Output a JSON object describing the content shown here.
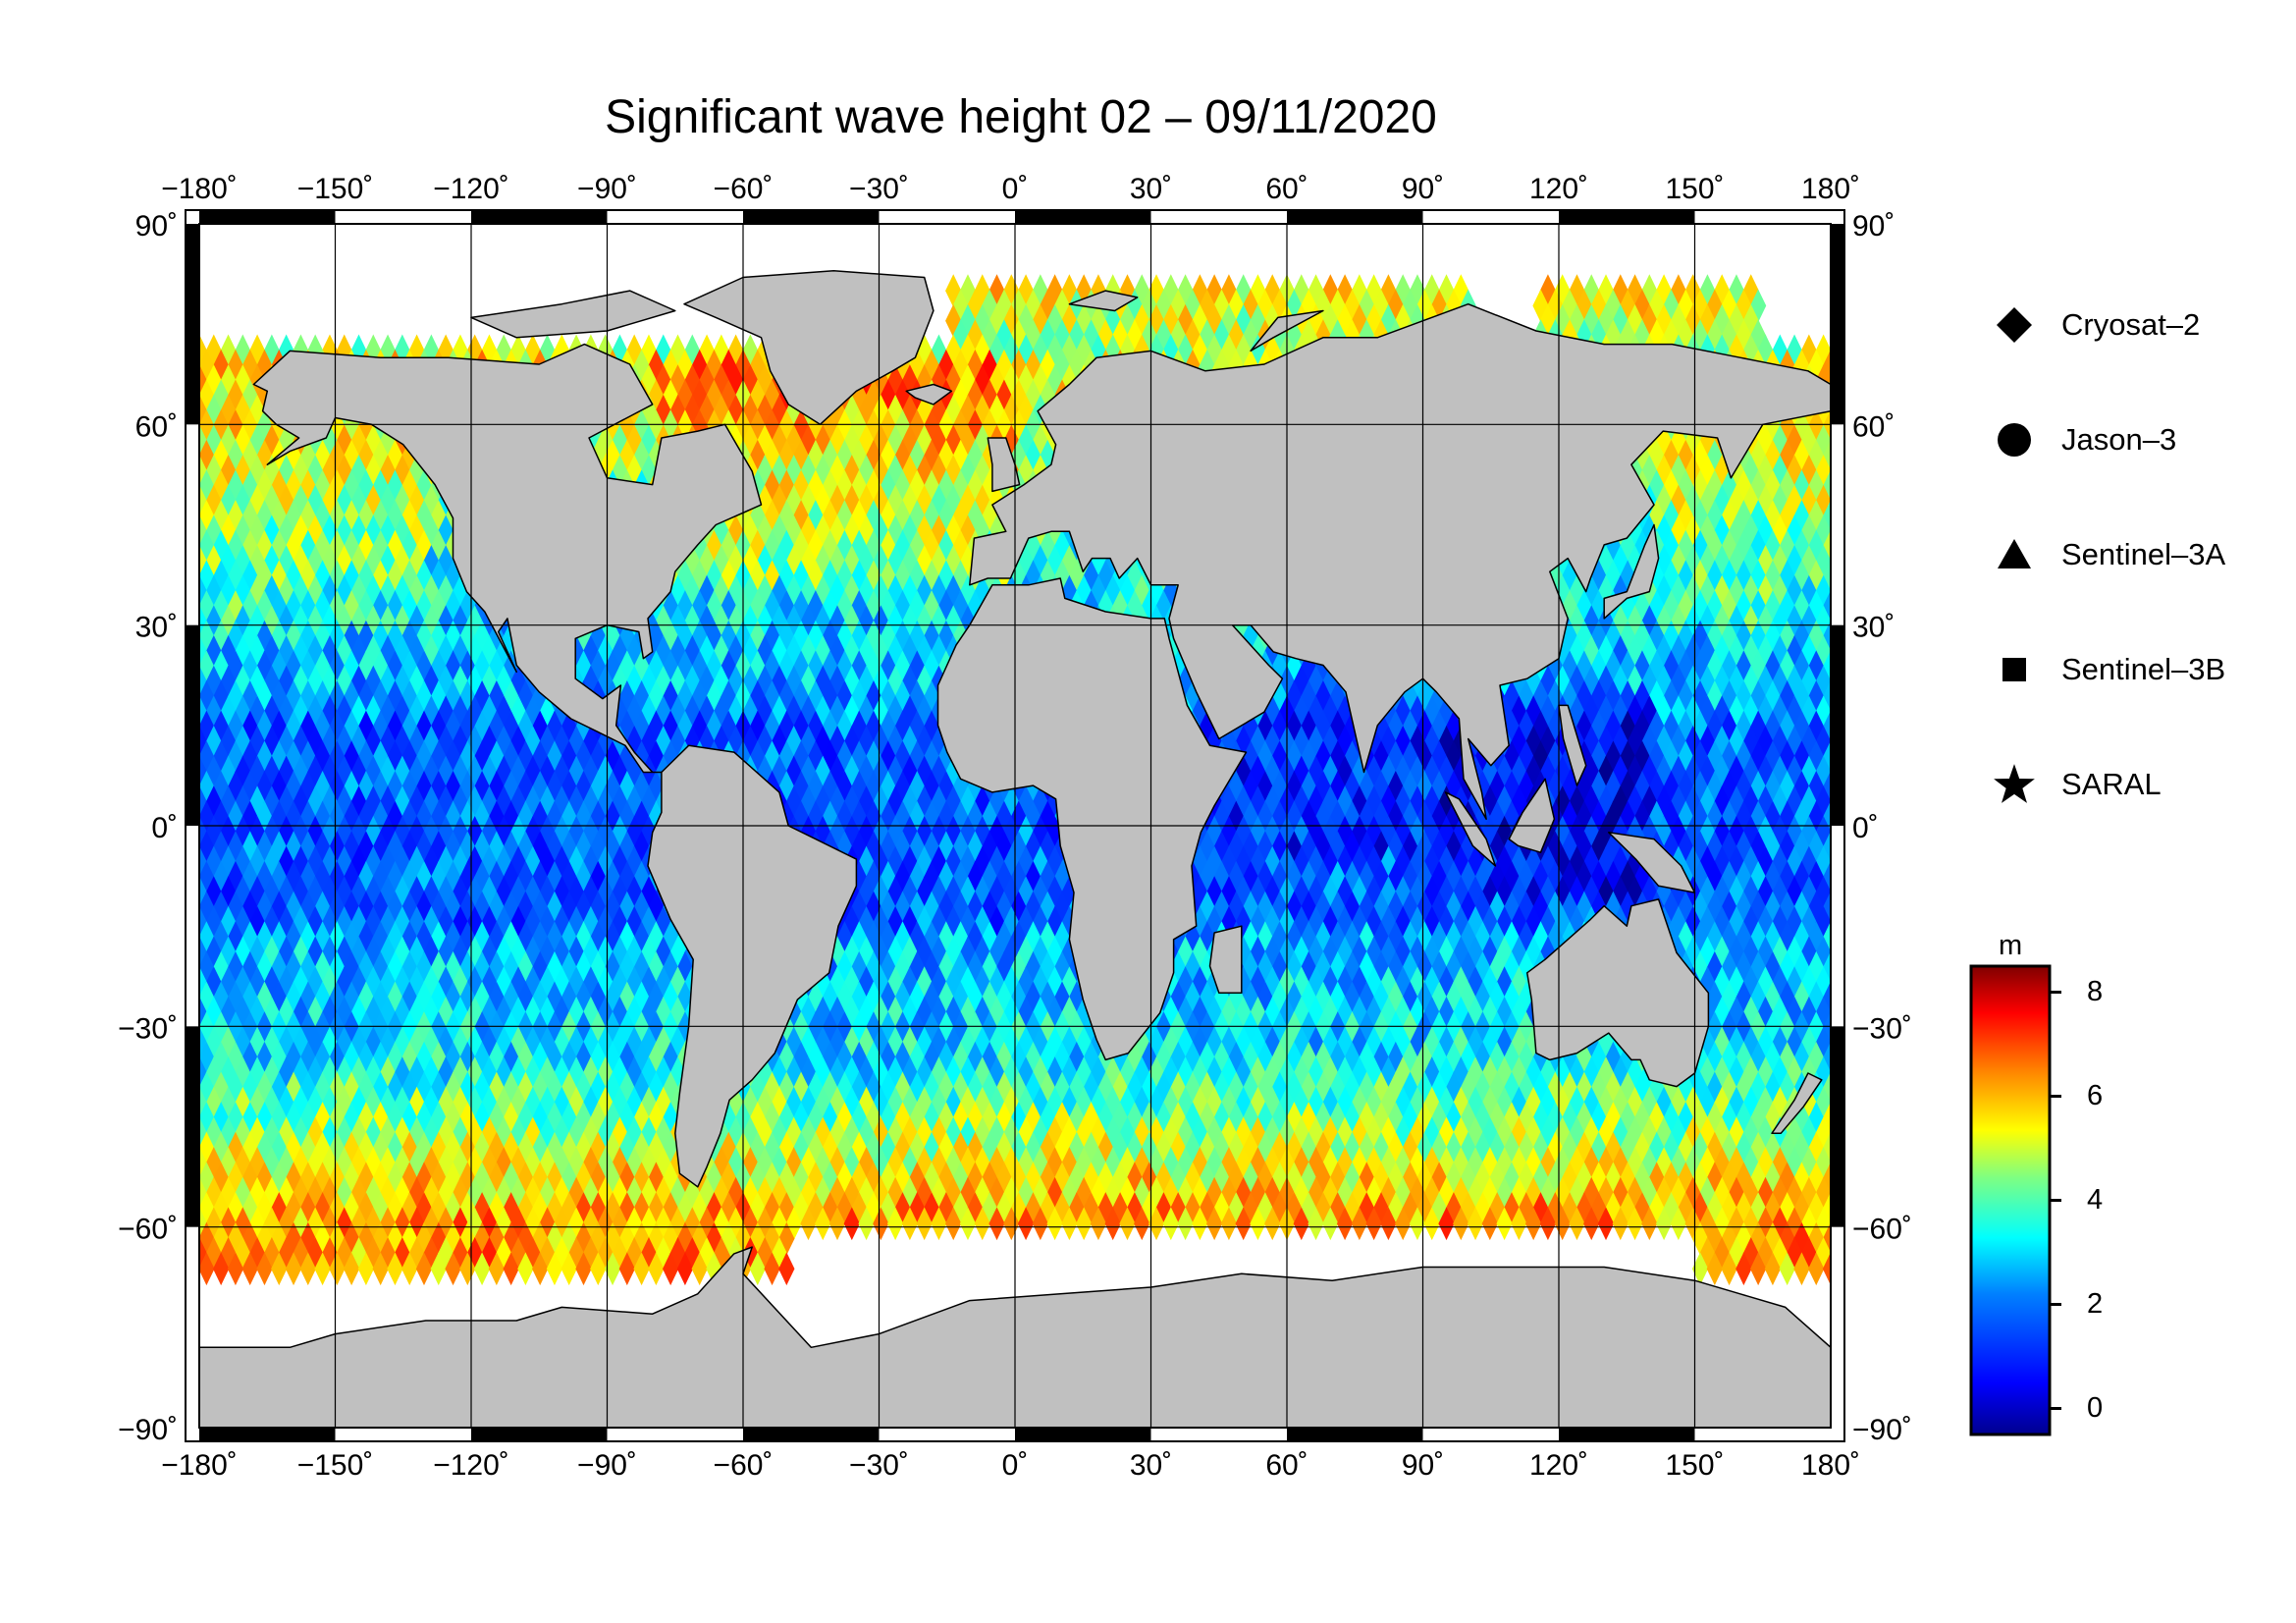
{
  "title": "Significant wave height 02 – 09/11/2020",
  "map": {
    "projection": "equirectangular",
    "lon_range": [
      -180,
      180
    ],
    "lat_range": [
      -90,
      90
    ],
    "grid_interval_deg": 30,
    "lon_ticks": [
      "−180˚",
      "−150˚",
      "−120˚",
      "−90˚",
      "−60˚",
      "−30˚",
      "0˚",
      "30˚",
      "60˚",
      "90˚",
      "120˚",
      "150˚",
      "180˚"
    ],
    "lat_ticks": [
      "90˚",
      "60˚",
      "30˚",
      "0˚",
      "−30˚",
      "−60˚",
      "−90˚"
    ],
    "land_color": "#c0c0c0",
    "sea_ice_color": "#ffffff"
  },
  "legend": {
    "items": [
      {
        "symbol": "diamond",
        "label": "Cryosat–2"
      },
      {
        "symbol": "circle",
        "label": "Jason–3"
      },
      {
        "symbol": "triangle",
        "label": "Sentinel–3A"
      },
      {
        "symbol": "square",
        "label": "Sentinel–3B"
      },
      {
        "symbol": "star",
        "label": "SARAL"
      }
    ]
  },
  "colorbar": {
    "unit": "m",
    "min": -0.5,
    "max": 8.5,
    "tick_labels": [
      "8",
      "6",
      "4",
      "2",
      "0"
    ],
    "colormap": [
      "#00008f",
      "#0000ff",
      "#0080ff",
      "#00ffff",
      "#80ff80",
      "#ffff00",
      "#ff8000",
      "#ff0000",
      "#800000"
    ]
  }
}
